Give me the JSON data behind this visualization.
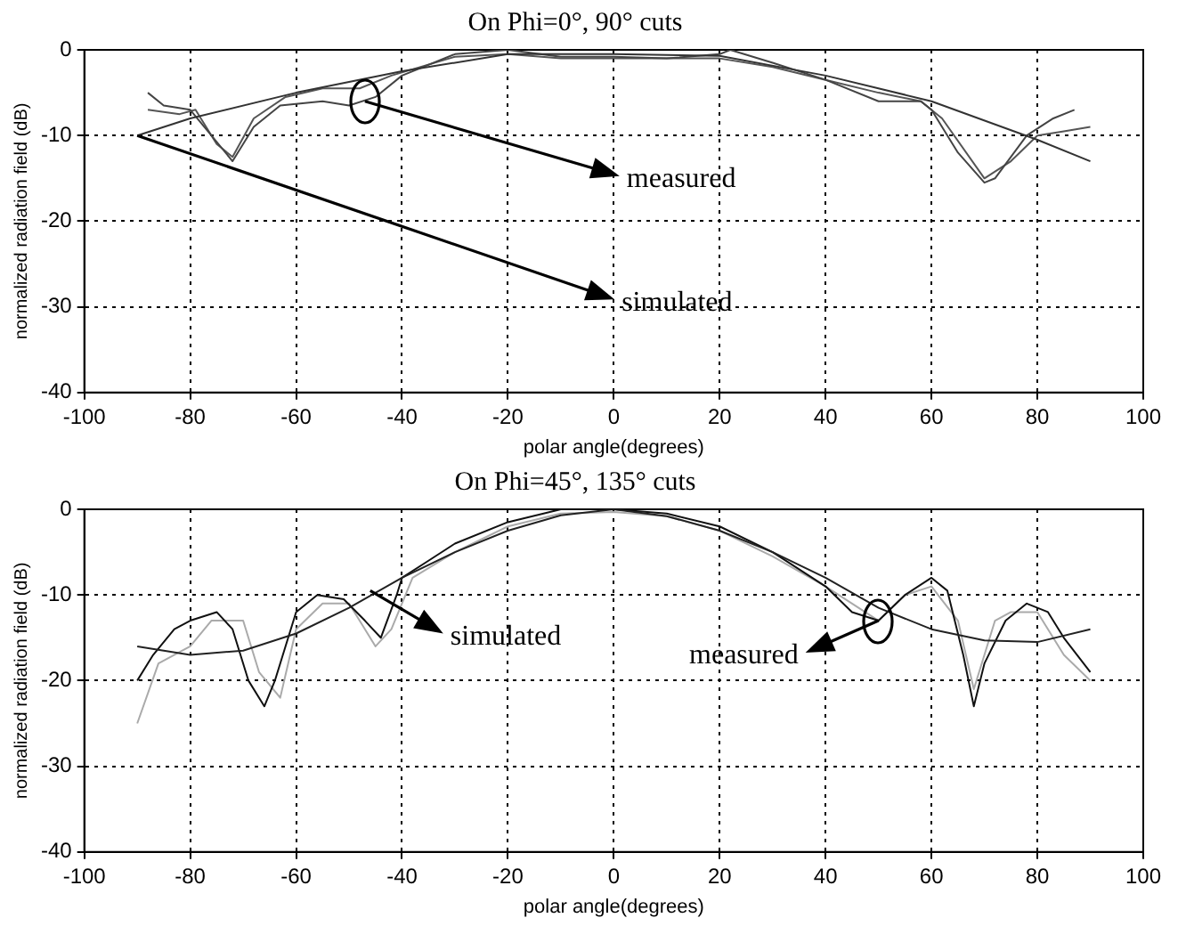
{
  "chart_data": [
    {
      "type": "line",
      "title": "On Phi=0°, 90° cuts",
      "xlabel": "polar angle(degrees)",
      "ylabel": "normalized radiation field (dB)",
      "xlim": [
        -100,
        100
      ],
      "xticks": [
        -100,
        -80,
        -60,
        -40,
        -20,
        0,
        20,
        40,
        60,
        80,
        100
      ],
      "ylim": [
        -40,
        0
      ],
      "yticks": [
        -40,
        -30,
        -20,
        -10,
        0
      ],
      "grid": true,
      "legend": false,
      "series": [
        {
          "color": "#333333",
          "x": [
            -90,
            -80,
            -60,
            -40,
            -20,
            0,
            20,
            40,
            60,
            80,
            90
          ],
          "values": [
            -10,
            -8,
            -5,
            -2.5,
            -0.5,
            -0.5,
            -0.7,
            -3,
            -6,
            -10.5,
            -13
          ]
        },
        {
          "color": "#444444",
          "x": [
            -88,
            -85,
            -80,
            -76,
            -72,
            -68,
            -63,
            -55,
            -50,
            -45,
            -40,
            -30,
            -20,
            -10,
            0,
            10,
            20,
            22,
            30,
            40,
            50,
            58,
            60,
            65,
            70,
            72,
            78,
            83,
            87
          ],
          "values": [
            -5,
            -6.5,
            -7,
            -10,
            -13,
            -9,
            -6.5,
            -6,
            -6.5,
            -5.5,
            -3,
            -0.5,
            0,
            -0.8,
            -0.8,
            -1,
            -0.5,
            0,
            -1.5,
            -3.5,
            -6,
            -6,
            -7,
            -12,
            -15.5,
            -15,
            -10,
            -8,
            -7
          ]
        },
        {
          "color": "#555555",
          "x": [
            -88,
            -82,
            -79,
            -75,
            -72,
            -68,
            -62,
            -55,
            -48,
            -42,
            -30,
            -20,
            -10,
            0,
            20,
            30,
            40,
            50,
            58,
            62,
            70,
            75,
            80,
            85,
            90
          ],
          "values": [
            -7,
            -7.5,
            -7,
            -11,
            -12.5,
            -8,
            -5.5,
            -4.5,
            -4.5,
            -3,
            -0.8,
            -0.5,
            -1,
            -1,
            -1,
            -2,
            -3.5,
            -5,
            -6,
            -8,
            -15,
            -13,
            -10,
            -9.5,
            -9
          ]
        }
      ],
      "annotations": [
        {
          "text": "measured",
          "x": -47,
          "y": -6
        },
        {
          "text": "simulated",
          "x": -90,
          "y": -10
        }
      ]
    },
    {
      "type": "line",
      "title": "On Phi=45°, 135° cuts",
      "xlabel": "polar angle(degrees)",
      "ylabel": "normalized radiation field (dB)",
      "xlim": [
        -100,
        100
      ],
      "xticks": [
        -100,
        -80,
        -60,
        -40,
        -20,
        0,
        20,
        40,
        60,
        80,
        100
      ],
      "ylim": [
        -40,
        0
      ],
      "yticks": [
        -40,
        -30,
        -20,
        -10,
        0
      ],
      "grid": true,
      "legend": false,
      "series": [
        {
          "color": "#222222",
          "x": [
            -90,
            -80,
            -70,
            -60,
            -50,
            -40,
            -30,
            -20,
            -10,
            0,
            10,
            20,
            30,
            40,
            50,
            60,
            70,
            80,
            90
          ],
          "values": [
            -16,
            -17,
            -16.5,
            -14.5,
            -11.5,
            -8,
            -5,
            -2.5,
            -0.7,
            0,
            -0.8,
            -2.5,
            -5,
            -8,
            -11.5,
            -14,
            -15.3,
            -15.5,
            -14
          ]
        },
        {
          "color": "#111111",
          "x": [
            -90,
            -87,
            -83,
            -80,
            -75,
            -72,
            -69,
            -66,
            -64,
            -60,
            -56,
            -51,
            -47,
            -44,
            -41,
            -40,
            -35,
            -30,
            -20,
            -10,
            0,
            10,
            20,
            30,
            40,
            45,
            50,
            55,
            60,
            63,
            66,
            68,
            70,
            74,
            78,
            82,
            85,
            90
          ],
          "values": [
            -20,
            -17,
            -14,
            -13,
            -12,
            -14,
            -20,
            -23,
            -20,
            -12,
            -10,
            -10.5,
            -13,
            -15,
            -10,
            -8,
            -6,
            -4,
            -1.5,
            0,
            0,
            -0.5,
            -2,
            -5,
            -9,
            -12,
            -13,
            -10,
            -8,
            -9.5,
            -17,
            -23,
            -18,
            -13,
            -11,
            -12,
            -15,
            -19
          ]
        },
        {
          "color": "#aaaaaa",
          "x": [
            -90,
            -86,
            -80,
            -76,
            -70,
            -67,
            -63,
            -60,
            -55,
            -50,
            -45,
            -42,
            -38,
            -30,
            -20,
            -10,
            0,
            10,
            20,
            30,
            40,
            50,
            55,
            60,
            65,
            68,
            72,
            75,
            80,
            85,
            90
          ],
          "values": [
            -25,
            -18,
            -16,
            -13,
            -13,
            -19,
            -22,
            -14,
            -11,
            -11,
            -16,
            -14,
            -8,
            -5,
            -2,
            -0.5,
            -0.3,
            -0.8,
            -2.5,
            -5.5,
            -9,
            -13,
            -10,
            -9,
            -13,
            -21,
            -13,
            -12,
            -12,
            -17,
            -20
          ]
        }
      ],
      "annotations": [
        {
          "text": "simulated",
          "x": -46,
          "y": -9.5
        },
        {
          "text": "measured",
          "x": 50,
          "y": -13
        }
      ]
    }
  ]
}
